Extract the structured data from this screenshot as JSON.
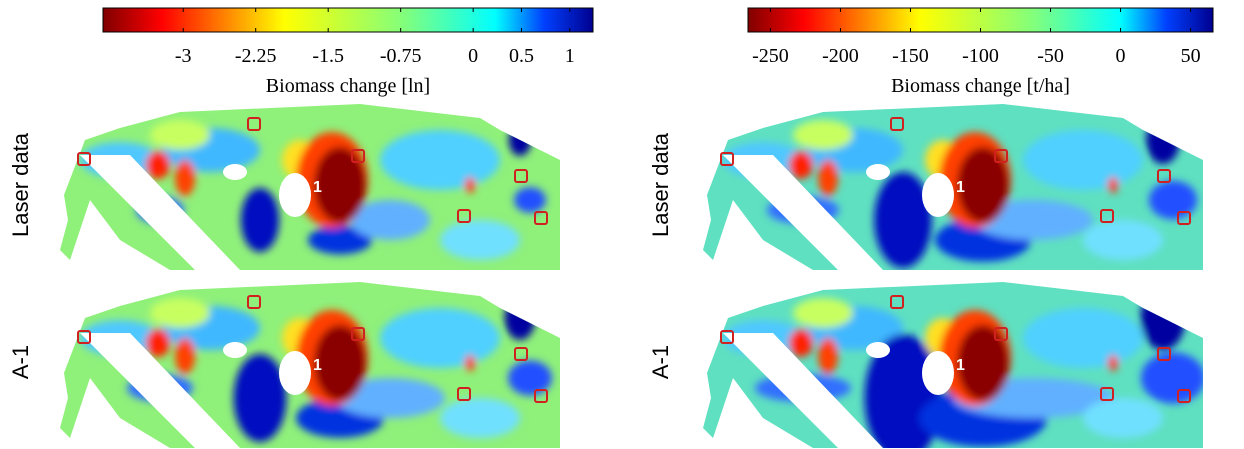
{
  "colorbars": [
    {
      "label": "Biomass change [ln]",
      "lim": [
        -3.83,
        1.24
      ],
      "ticks": [
        -3,
        -2.25,
        -1.5,
        -0.75,
        0,
        0.5,
        1
      ]
    },
    {
      "label": "Biomass change [t/ha]",
      "lim": [
        -266,
        66
      ],
      "ticks": [
        -250,
        -200,
        -150,
        -100,
        -50,
        0,
        50
      ]
    }
  ],
  "row_labels": [
    "Laser data",
    "A-1"
  ],
  "map_label": "1"
}
